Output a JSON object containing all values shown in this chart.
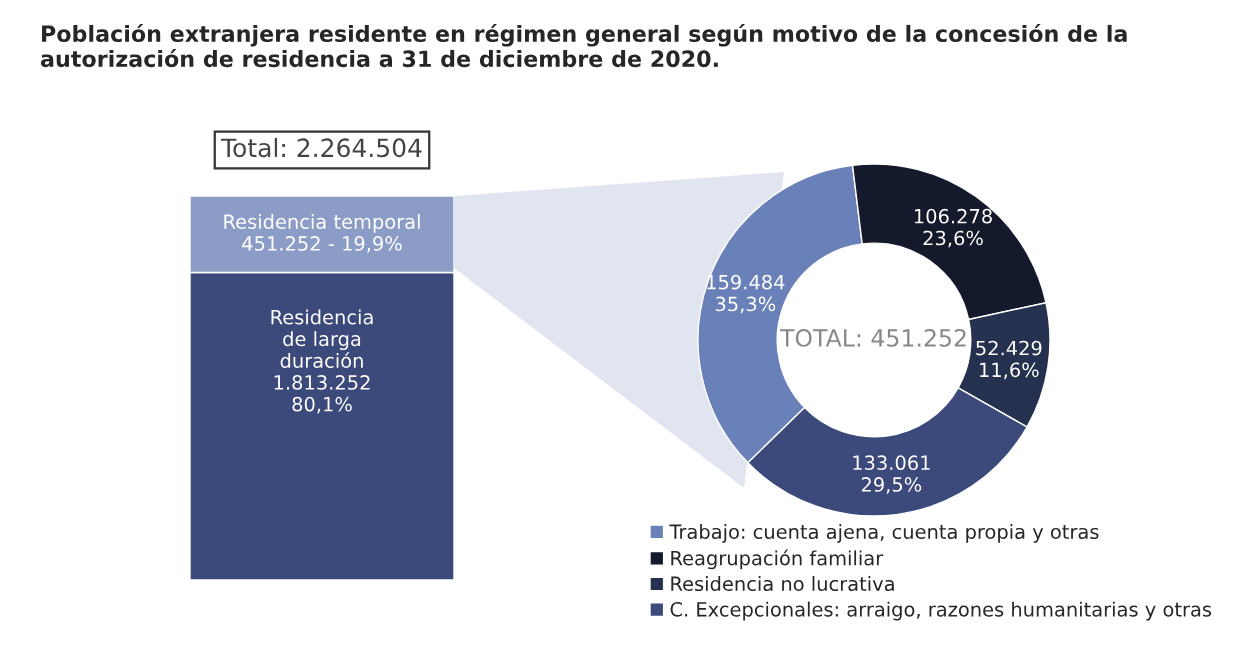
{
  "chart_data": [
    {
      "type": "bar",
      "stacked": true,
      "title": "Población extranjera residente en régimen general según motivo de la concesión de la autorización de residencia a 31 de diciembre de 2020.",
      "categories": [
        null
      ],
      "annotations": [
        "Total: 2.264.504"
      ],
      "series": [
        {
          "name": "Residencia\nde larga\nduración",
          "color": "#3b4a7a",
          "values": [
            1813252
          ],
          "value_labels": [
            "1.813.252\n80,1%"
          ]
        },
        {
          "name": "Residencia temporal",
          "color": "#8b9dc6",
          "values": [
            451252
          ],
          "value_labels": [
            "451.252 - 19,9%"
          ]
        }
      ]
    },
    {
      "type": "donut",
      "categories": [
        "Trabajo: cuenta ajena, cuenta propia y otras",
        "Reagrupación familiar",
        "Residencia no lucrativa",
        "C. Excepcionales: arraigo, razones humanitarias y otras"
      ],
      "values": [
        159484,
        106278,
        52429,
        133061
      ],
      "colors": [
        "#6a80b8",
        "#141a2b",
        "#26314f",
        "#3b4a7a"
      ],
      "value_labels": [
        "159.484\n35,3%",
        "106.278\n23,6%",
        "52.429\n11,6%",
        "133.061\n29,5%"
      ],
      "annotations": [
        "TOTAL: 451.252"
      ],
      "legend": "bottom"
    }
  ]
}
